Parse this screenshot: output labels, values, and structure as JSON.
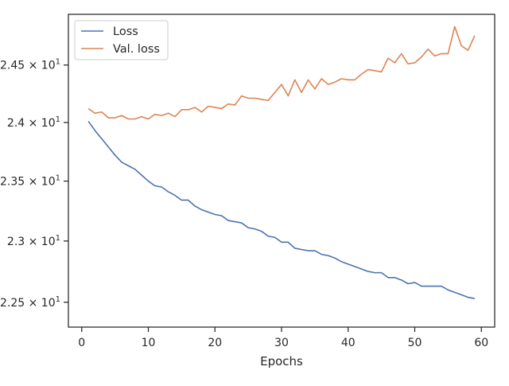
{
  "colors": {
    "loss": "#4C72B0",
    "val_loss": "#DD8452",
    "axis": "#262626"
  },
  "chart_data": {
    "type": "line",
    "title": "",
    "xlabel": "Epochs",
    "ylabel": "",
    "xlim": [
      -2,
      62
    ],
    "ylim": [
      22.3,
      24.95
    ],
    "yscale": "log",
    "grid": false,
    "legend_position": "upper left",
    "x_ticks": [
      0,
      10,
      20,
      30,
      40,
      50,
      60
    ],
    "y_ticks": [
      {
        "value": 22.5,
        "mantissa": "2.25",
        "exponent": "1"
      },
      {
        "value": 23.0,
        "mantissa": "2.3",
        "exponent": "1"
      },
      {
        "value": 23.5,
        "mantissa": "2.35",
        "exponent": "1"
      },
      {
        "value": 24.0,
        "mantissa": "2.4",
        "exponent": "1"
      },
      {
        "value": 24.5,
        "mantissa": "2.45",
        "exponent": "1"
      }
    ],
    "x": [
      1,
      2,
      3,
      4,
      5,
      6,
      7,
      8,
      9,
      10,
      11,
      12,
      13,
      14,
      15,
      16,
      17,
      18,
      19,
      20,
      21,
      22,
      23,
      24,
      25,
      26,
      27,
      28,
      29,
      30,
      31,
      32,
      33,
      34,
      35,
      36,
      37,
      38,
      39,
      40,
      41,
      42,
      43,
      44,
      45,
      46,
      47,
      48,
      49,
      50,
      51,
      52,
      53,
      54,
      55,
      56,
      57,
      58,
      59
    ],
    "series": [
      {
        "name": "Loss",
        "values": [
          24.01,
          23.93,
          23.86,
          23.79,
          23.72,
          23.66,
          23.63,
          23.6,
          23.55,
          23.5,
          23.46,
          23.45,
          23.41,
          23.38,
          23.34,
          23.34,
          23.29,
          23.26,
          23.24,
          23.22,
          23.21,
          23.17,
          23.16,
          23.15,
          23.11,
          23.1,
          23.08,
          23.04,
          23.03,
          22.99,
          22.99,
          22.94,
          22.93,
          22.92,
          22.92,
          22.89,
          22.88,
          22.86,
          22.83,
          22.81,
          22.79,
          22.77,
          22.75,
          22.74,
          22.74,
          22.7,
          22.7,
          22.68,
          22.65,
          22.66,
          22.63,
          22.63,
          22.63,
          22.63,
          22.6,
          22.58,
          22.56,
          22.54,
          22.53
        ]
      },
      {
        "name": "Val. loss",
        "values": [
          24.12,
          24.08,
          24.09,
          24.04,
          24.04,
          24.06,
          24.03,
          24.03,
          24.05,
          24.03,
          24.07,
          24.06,
          24.08,
          24.05,
          24.11,
          24.11,
          24.13,
          24.09,
          24.14,
          24.13,
          24.12,
          24.16,
          24.15,
          24.23,
          24.21,
          24.21,
          24.2,
          24.19,
          24.26,
          24.33,
          24.23,
          24.37,
          24.26,
          24.37,
          24.29,
          24.38,
          24.33,
          24.35,
          24.38,
          24.37,
          24.37,
          24.42,
          24.46,
          24.45,
          24.44,
          24.56,
          24.52,
          24.6,
          24.51,
          24.52,
          24.57,
          24.64,
          24.58,
          24.6,
          24.6,
          24.84,
          24.67,
          24.63,
          24.76
        ]
      }
    ]
  }
}
